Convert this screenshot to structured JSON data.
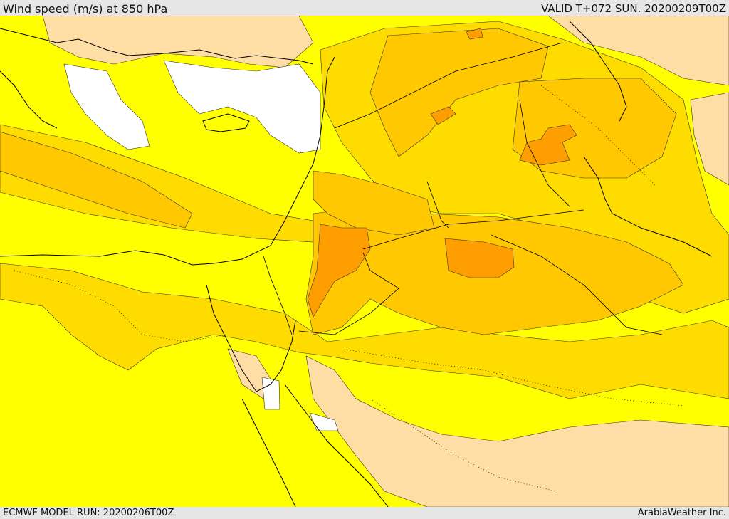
{
  "header": {
    "title": "Wind speed (m/s) at 850 hPa",
    "valid_time": "VALID T+072 SUN. 20200209T00Z"
  },
  "footer": {
    "model_run": "ECMWF MODEL RUN: 20200206T00Z",
    "credit": "ArabiaWeather Inc."
  },
  "palette": {
    "calm": "#ffffff",
    "light": "#ffdea6",
    "moderate": "#ffff00",
    "fresh": "#ffdc00",
    "strong": "#ffc800",
    "very_strong": "#ff9e00",
    "coastline": "#000000"
  }
}
